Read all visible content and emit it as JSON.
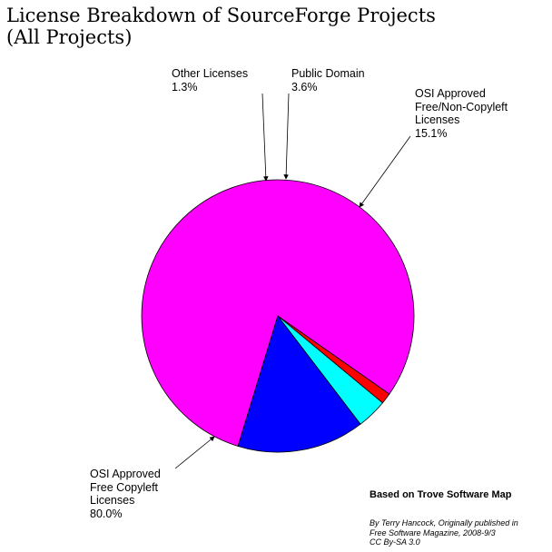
{
  "chart_data": {
    "type": "pie",
    "title_lines": [
      "License Breakdown of SourceForge Projects",
      "(All Projects)"
    ],
    "slices": [
      {
        "label_lines": [
          "OSI Approved",
          "Free Copyleft",
          "Licenses"
        ],
        "value": 80.0,
        "pct": "80.0%",
        "color": "#ff00ff"
      },
      {
        "label_lines": [
          "Other Licenses"
        ],
        "value": 1.3,
        "pct": "1.3%",
        "color": "#ff0000"
      },
      {
        "label_lines": [
          "Public Domain"
        ],
        "value": 3.6,
        "pct": "3.6%",
        "color": "#00ffff"
      },
      {
        "label_lines": [
          "OSI Approved",
          "Free/Non-Copyleft",
          "Licenses"
        ],
        "value": 15.1,
        "pct": "15.1%",
        "color": "#0000ff"
      }
    ],
    "source": "Based on Trove Software Map",
    "credit_lines": [
      "By Terry Hancock, Originally published in",
      "Free Software Magazine, 2008-9/3",
      "CC By-SA 3.0"
    ]
  }
}
